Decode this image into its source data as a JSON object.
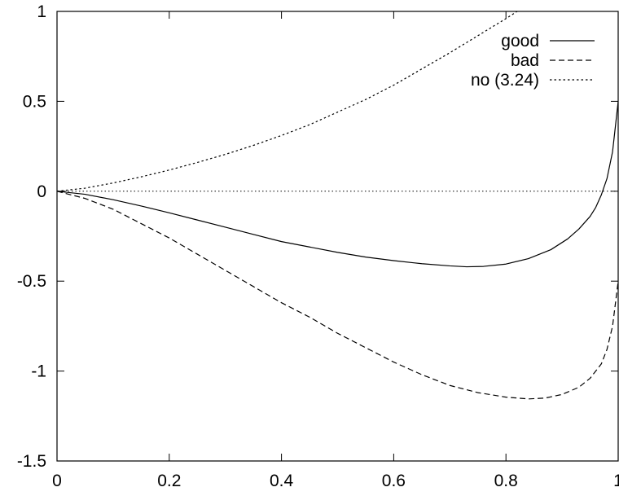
{
  "chart_data": {
    "type": "line",
    "title": "",
    "xlabel": "",
    "ylabel": "",
    "xlim": [
      0,
      1
    ],
    "ylim": [
      -1.5,
      1
    ],
    "x_ticks": [
      0,
      0.2,
      0.4,
      0.6,
      0.8,
      1
    ],
    "y_ticks": [
      -1.5,
      -1,
      -0.5,
      0,
      0.5,
      1
    ],
    "x_tick_labels": [
      "0",
      "0.2",
      "0.4",
      "0.6",
      "0.8",
      "1"
    ],
    "y_tick_labels": [
      "-1.5",
      "-1",
      "-0.5",
      "0",
      "0.5",
      "1"
    ],
    "grid": false,
    "legend_position": "top-right",
    "zero_line": true,
    "series": [
      {
        "name": "good",
        "dash": "solid",
        "color": "#000000",
        "x": [
          0,
          0.05,
          0.1,
          0.15,
          0.2,
          0.25,
          0.3,
          0.35,
          0.4,
          0.45,
          0.5,
          0.55,
          0.6,
          0.65,
          0.7,
          0.73,
          0.76,
          0.8,
          0.84,
          0.88,
          0.91,
          0.93,
          0.95,
          0.96,
          0.97,
          0.98,
          0.99,
          1.0
        ],
        "y": [
          0,
          -0.017,
          -0.047,
          -0.082,
          -0.12,
          -0.16,
          -0.2,
          -0.24,
          -0.28,
          -0.31,
          -0.34,
          -0.366,
          -0.386,
          -0.403,
          -0.415,
          -0.42,
          -0.418,
          -0.405,
          -0.375,
          -0.325,
          -0.265,
          -0.21,
          -0.14,
          -0.09,
          -0.02,
          0.07,
          0.22,
          0.5
        ]
      },
      {
        "name": "bad",
        "dash": "dashed",
        "color": "#000000",
        "x": [
          0,
          0.05,
          0.1,
          0.15,
          0.2,
          0.25,
          0.3,
          0.35,
          0.4,
          0.45,
          0.5,
          0.55,
          0.6,
          0.65,
          0.7,
          0.75,
          0.8,
          0.84,
          0.87,
          0.9,
          0.93,
          0.95,
          0.97,
          0.98,
          0.99,
          1.0
        ],
        "y": [
          0,
          -0.04,
          -0.1,
          -0.18,
          -0.26,
          -0.35,
          -0.44,
          -0.53,
          -0.62,
          -0.7,
          -0.79,
          -0.87,
          -0.95,
          -1.02,
          -1.08,
          -1.12,
          -1.145,
          -1.155,
          -1.15,
          -1.13,
          -1.09,
          -1.04,
          -0.96,
          -0.88,
          -0.75,
          -0.5
        ]
      },
      {
        "name": "no (3.24)",
        "dash": "dotted",
        "color": "#000000",
        "x": [
          0,
          0.05,
          0.1,
          0.15,
          0.2,
          0.25,
          0.3,
          0.35,
          0.4,
          0.45,
          0.5,
          0.55,
          0.6,
          0.65,
          0.7,
          0.75,
          0.8,
          0.82
        ],
        "y": [
          0,
          0.017,
          0.046,
          0.08,
          0.118,
          0.16,
          0.205,
          0.255,
          0.31,
          0.37,
          0.44,
          0.51,
          0.59,
          0.68,
          0.77,
          0.865,
          0.96,
          1.0
        ]
      }
    ]
  }
}
